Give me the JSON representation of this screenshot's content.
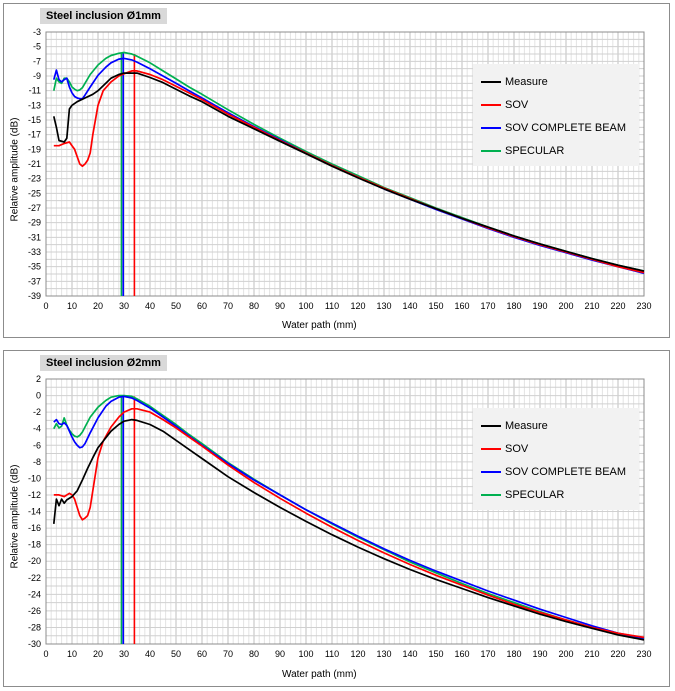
{
  "chart_data": [
    {
      "type": "line",
      "title": "Steel inclusion Ø1mm",
      "xlabel": "Water path (mm)",
      "ylabel": "Relative amplitude (dB)",
      "xlim": [
        0,
        230
      ],
      "ylim": [
        -39,
        -3
      ],
      "xticks": [
        "0",
        "10",
        "20",
        "30",
        "40",
        "50",
        "60",
        "70",
        "80",
        "90",
        "100",
        "110",
        "120",
        "130",
        "140",
        "150",
        "160",
        "170",
        "180",
        "190",
        "200",
        "210",
        "220",
        "230"
      ],
      "yticks": [
        "-3",
        "-5",
        "-7",
        "-9",
        "-11",
        "-13",
        "-15",
        "-17",
        "-19",
        "-21",
        "-23",
        "-25",
        "-27",
        "-29",
        "-31",
        "-33",
        "-35",
        "-37",
        "-39"
      ],
      "grid": true,
      "legend_position": "top-right",
      "series": [
        {
          "name": "Measure",
          "color": "#000000",
          "x": [
            3,
            4,
            5,
            7,
            8,
            9,
            10,
            12,
            15,
            18,
            20,
            23,
            25,
            28,
            30,
            33,
            35,
            40,
            45,
            50,
            55,
            60,
            70,
            80,
            90,
            100,
            110,
            120,
            130,
            140,
            150,
            160,
            170,
            180,
            190,
            200,
            210,
            220,
            230
          ],
          "y": [
            -14.5,
            -16,
            -17.8,
            -18,
            -17.5,
            -13.5,
            -13,
            -12.5,
            -12,
            -11.5,
            -11,
            -10,
            -9.3,
            -8.8,
            -8.6,
            -8.6,
            -8.6,
            -9.2,
            -9.9,
            -10.8,
            -11.7,
            -12.5,
            -14.5,
            -16.2,
            -17.9,
            -19.6,
            -21.3,
            -22.9,
            -24.4,
            -25.8,
            -27.1,
            -28.4,
            -29.6,
            -30.8,
            -31.9,
            -32.9,
            -33.9,
            -34.8,
            -35.6
          ]
        },
        {
          "name": "SOV",
          "color": "#ff0000",
          "x": [
            3,
            5,
            7,
            9,
            10,
            11,
            12,
            13,
            14,
            15,
            16,
            17,
            18,
            19,
            20,
            22,
            25,
            28,
            30,
            33,
            35,
            40,
            45,
            50,
            55,
            60,
            70,
            80,
            90,
            100,
            110,
            120,
            130,
            140,
            150,
            160,
            170,
            180,
            190,
            200,
            210,
            220,
            230
          ],
          "y": [
            -18.5,
            -18.5,
            -18.2,
            -18,
            -18.5,
            -19,
            -20,
            -21,
            -21.3,
            -21,
            -20.5,
            -19.5,
            -17,
            -15,
            -13,
            -11,
            -9.8,
            -9,
            -8.7,
            -8.3,
            -8.3,
            -8.8,
            -9.5,
            -10.4,
            -11.3,
            -12.2,
            -14.2,
            -16,
            -17.8,
            -19.5,
            -21.2,
            -22.8,
            -24.3,
            -25.7,
            -27.1,
            -28.4,
            -29.7,
            -30.9,
            -32,
            -33,
            -34,
            -35,
            -35.8
          ]
        },
        {
          "name": "SOV COMPLETE BEAM",
          "color": "#0000ff",
          "x": [
            3,
            4,
            5,
            6,
            7,
            8,
            9,
            10,
            11,
            12,
            13,
            14,
            15,
            17,
            20,
            23,
            25,
            28,
            30,
            33,
            35,
            40,
            45,
            50,
            55,
            60,
            70,
            80,
            90,
            100,
            110,
            120,
            130,
            140,
            150,
            160,
            170,
            180,
            190,
            200,
            210,
            220,
            230
          ],
          "y": [
            -9.5,
            -8.2,
            -9.5,
            -9.8,
            -9.5,
            -9.3,
            -10.5,
            -11.3,
            -11.8,
            -12,
            -12.1,
            -12.1,
            -11.6,
            -10.5,
            -8.9,
            -7.8,
            -7.2,
            -6.7,
            -6.6,
            -6.8,
            -7.1,
            -8,
            -9,
            -10,
            -11,
            -12,
            -14,
            -15.9,
            -17.7,
            -19.5,
            -21.2,
            -22.8,
            -24.4,
            -25.8,
            -27.2,
            -28.5,
            -29.8,
            -31,
            -32.1,
            -33.1,
            -34.1,
            -35,
            -35.9
          ]
        },
        {
          "name": "SPECULAR",
          "color": "#00b050",
          "x": [
            3,
            4,
            5,
            6,
            7,
            8,
            9,
            10,
            11,
            12,
            13,
            14,
            15,
            17,
            20,
            23,
            25,
            28,
            30,
            33,
            35,
            40,
            45,
            50,
            55,
            60,
            70,
            80,
            90,
            100,
            110,
            120,
            130,
            140,
            150,
            160,
            170,
            180,
            190,
            200,
            210,
            220,
            230
          ],
          "y": [
            -11,
            -9.3,
            -9.8,
            -10,
            -9.3,
            -9.3,
            -9.8,
            -10.5,
            -10.8,
            -11,
            -10.9,
            -10.6,
            -10,
            -8.8,
            -7.5,
            -6.6,
            -6.2,
            -5.9,
            -5.8,
            -6,
            -6.3,
            -7.2,
            -8.3,
            -9.4,
            -10.5,
            -11.5,
            -13.6,
            -15.6,
            -17.5,
            -19.3,
            -21,
            -22.6,
            -24.2,
            -25.6,
            -27,
            -28.3,
            -29.6,
            -30.8,
            -31.9,
            -32.9,
            -33.9,
            -34.8,
            -35.6
          ]
        }
      ],
      "vlines": [
        {
          "x": 29,
          "color": "#00b050"
        },
        {
          "x": 29.7,
          "color": "#0000ff"
        },
        {
          "x": 34,
          "color": "#ff0000"
        }
      ]
    },
    {
      "type": "line",
      "title": "Steel inclusion Ø2mm",
      "xlabel": "Water path (mm)",
      "ylabel": "Relative amplitude (dB)",
      "xlim": [
        0,
        230
      ],
      "ylim": [
        -30,
        2
      ],
      "xticks": [
        "0",
        "10",
        "20",
        "30",
        "40",
        "50",
        "60",
        "70",
        "80",
        "90",
        "100",
        "110",
        "120",
        "130",
        "140",
        "150",
        "160",
        "170",
        "180",
        "190",
        "200",
        "210",
        "220",
        "230"
      ],
      "yticks": [
        "2",
        "0",
        "-2",
        "-4",
        "-6",
        "-8",
        "-10",
        "-12",
        "-14",
        "-16",
        "-18",
        "-20",
        "-22",
        "-24",
        "-26",
        "-28",
        "-30"
      ],
      "grid": true,
      "legend_position": "top-right",
      "series": [
        {
          "name": "Measure",
          "color": "#000000",
          "x": [
            3,
            4,
            5,
            6,
            7,
            8,
            10,
            12,
            14,
            16,
            18,
            20,
            22,
            25,
            28,
            30,
            33,
            35,
            40,
            45,
            50,
            55,
            60,
            70,
            80,
            90,
            100,
            110,
            120,
            130,
            140,
            150,
            160,
            170,
            180,
            190,
            200,
            210,
            220,
            230
          ],
          "y": [
            -15.5,
            -12.5,
            -13.3,
            -12.5,
            -13,
            -12.6,
            -12.2,
            -11.5,
            -10.2,
            -8.8,
            -7.5,
            -6.3,
            -5.5,
            -4.3,
            -3.5,
            -3.1,
            -2.9,
            -3,
            -3.5,
            -4.3,
            -5.4,
            -6.5,
            -7.6,
            -9.8,
            -11.7,
            -13.5,
            -15.2,
            -16.8,
            -18.3,
            -19.7,
            -21,
            -22.2,
            -23.3,
            -24.4,
            -25.4,
            -26.4,
            -27.3,
            -28.1,
            -28.9,
            -29.5
          ]
        },
        {
          "name": "SOV",
          "color": "#ff0000",
          "x": [
            3,
            5,
            7,
            9,
            10,
            11,
            12,
            13,
            14,
            15,
            16,
            17,
            18,
            19,
            20,
            22,
            25,
            28,
            30,
            33,
            35,
            40,
            45,
            50,
            55,
            60,
            70,
            80,
            90,
            100,
            110,
            120,
            130,
            140,
            150,
            160,
            170,
            180,
            190,
            200,
            210,
            220,
            230
          ],
          "y": [
            -12,
            -12,
            -12.2,
            -11.8,
            -12,
            -12.5,
            -13.5,
            -14.5,
            -15,
            -14.8,
            -14.5,
            -13.5,
            -11.5,
            -9.5,
            -7.5,
            -5.5,
            -3.8,
            -2.6,
            -2,
            -1.6,
            -1.6,
            -2,
            -2.9,
            -3.9,
            -5,
            -6.1,
            -8.4,
            -10.5,
            -12.4,
            -14.2,
            -15.9,
            -17.5,
            -19,
            -20.4,
            -21.7,
            -22.9,
            -24.1,
            -25.2,
            -26.2,
            -27.1,
            -28,
            -28.7,
            -29.2
          ]
        },
        {
          "name": "SOV COMPLETE BEAM",
          "color": "#0000ff",
          "x": [
            3,
            4,
            5,
            6,
            7,
            8,
            9,
            10,
            11,
            12,
            13,
            14,
            15,
            17,
            20,
            23,
            25,
            28,
            30,
            33,
            35,
            40,
            45,
            50,
            55,
            60,
            70,
            80,
            90,
            100,
            110,
            120,
            130,
            140,
            150,
            160,
            170,
            180,
            190,
            200,
            210,
            220,
            230
          ],
          "y": [
            -3.2,
            -2.9,
            -3.4,
            -3.5,
            -3.3,
            -3.6,
            -4.3,
            -5,
            -5.6,
            -6,
            -6.3,
            -6.2,
            -5.8,
            -4.5,
            -2.7,
            -1.3,
            -0.7,
            -0.2,
            -0.1,
            -0.3,
            -0.6,
            -1.5,
            -2.6,
            -3.7,
            -4.9,
            -6,
            -8.2,
            -10.2,
            -12,
            -13.8,
            -15.4,
            -17,
            -18.5,
            -19.9,
            -21.2,
            -22.4,
            -23.6,
            -24.7,
            -25.8,
            -26.8,
            -27.8,
            -28.7,
            -29.3
          ]
        },
        {
          "name": "SPECULAR",
          "color": "#00b050",
          "x": [
            3,
            4,
            5,
            6,
            7,
            8,
            9,
            10,
            11,
            12,
            13,
            14,
            15,
            17,
            20,
            23,
            25,
            28,
            30,
            33,
            35,
            40,
            45,
            50,
            55,
            60,
            70,
            80,
            90,
            100,
            110,
            120,
            130,
            140,
            150,
            160,
            170,
            180,
            190,
            200,
            210,
            220,
            230
          ],
          "y": [
            -4,
            -3.4,
            -3.9,
            -3.7,
            -2.7,
            -3.6,
            -4.2,
            -4.6,
            -4.9,
            -5,
            -4.8,
            -4.4,
            -3.8,
            -2.6,
            -1.4,
            -0.6,
            -0.2,
            0,
            0,
            -0.1,
            -0.4,
            -1.3,
            -2.4,
            -3.5,
            -4.7,
            -5.8,
            -8.1,
            -10.1,
            -12,
            -13.8,
            -15.5,
            -17.1,
            -18.6,
            -20.1,
            -21.4,
            -22.7,
            -23.9,
            -25,
            -26.1,
            -27.1,
            -28,
            -28.8,
            -29.4
          ]
        }
      ],
      "vlines": [
        {
          "x": 29,
          "color": "#00b050"
        },
        {
          "x": 29.7,
          "color": "#0000ff"
        },
        {
          "x": 34,
          "color": "#ff0000"
        }
      ]
    }
  ]
}
